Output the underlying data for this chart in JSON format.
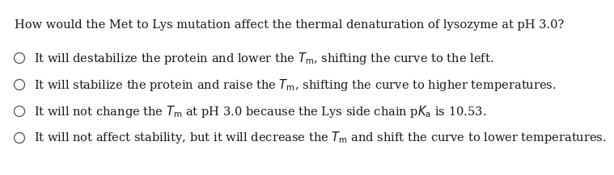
{
  "question": "How would the Met to Lys mutation affect the thermal denaturation of lysozyme at pH 3.0?",
  "option1_pre": "It will destabilize the protein and lower the ",
  "option1_tm": "$T_\\mathregular{m}$",
  "option1_post": ", shifting the curve to the left.",
  "option2_pre": "It will stabilize the protein and raise the ",
  "option2_tm": "$T_\\mathregular{m}$",
  "option2_post": ", shifting the curve to higher temperatures.",
  "option3_pre": "It will not change the ",
  "option3_tm": "$T_\\mathregular{m}$",
  "option3_mid": " at pH 3.0 because the Lys side chain p",
  "option3_ka": "$K_\\mathregular{a}$",
  "option3_post": " is 10.53.",
  "option4_pre": "It will not affect stability, but it will decrease the ",
  "option4_tm": "$T_\\mathregular{m}$",
  "option4_post": " and shift the curve to lower temperatures.",
  "background_color": "#ffffff",
  "text_color": "#1a1a1a",
  "font_size": 10.5,
  "question_font_size": 10.5
}
